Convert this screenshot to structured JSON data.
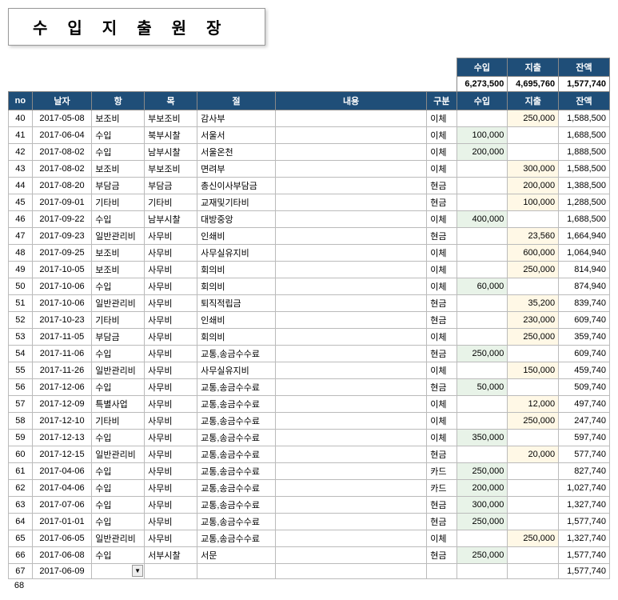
{
  "title": "수입지출원장",
  "summary": {
    "headers": {
      "in": "수입",
      "out": "지출",
      "bal": "잔액"
    },
    "values": {
      "in": "6,273,500",
      "out": "4,695,760",
      "bal": "1,577,740"
    }
  },
  "columns": {
    "no": "no",
    "date": "날자",
    "hang": "항",
    "mok": "목",
    "jeol": "절",
    "content": "내용",
    "gubun": "구분",
    "in": "수입",
    "out": "지출",
    "bal": "잔액"
  },
  "rows": [
    {
      "no": "40",
      "date": "2017-05-08",
      "hang": "보조비",
      "mok": "부보조비",
      "jeol": "감사부",
      "content": "",
      "gubun": "이체",
      "in": "",
      "out": "250,000",
      "bal": "1,588,500"
    },
    {
      "no": "41",
      "date": "2017-06-04",
      "hang": "수입",
      "mok": "북부시찰",
      "jeol": "서울서",
      "content": "",
      "gubun": "이체",
      "in": "100,000",
      "out": "",
      "bal": "1,688,500"
    },
    {
      "no": "42",
      "date": "2017-08-02",
      "hang": "수입",
      "mok": "남부시찰",
      "jeol": "서울온천",
      "content": "",
      "gubun": "이체",
      "in": "200,000",
      "out": "",
      "bal": "1,888,500"
    },
    {
      "no": "43",
      "date": "2017-08-02",
      "hang": "보조비",
      "mok": "부보조비",
      "jeol": "면려부",
      "content": "",
      "gubun": "이체",
      "in": "",
      "out": "300,000",
      "bal": "1,588,500"
    },
    {
      "no": "44",
      "date": "2017-08-20",
      "hang": "부담금",
      "mok": "부담금",
      "jeol": "총신이사부담금",
      "content": "",
      "gubun": "현금",
      "in": "",
      "out": "200,000",
      "bal": "1,388,500"
    },
    {
      "no": "45",
      "date": "2017-09-01",
      "hang": "기타비",
      "mok": "기타비",
      "jeol": "교재및기타비",
      "content": "",
      "gubun": "현금",
      "in": "",
      "out": "100,000",
      "bal": "1,288,500"
    },
    {
      "no": "46",
      "date": "2017-09-22",
      "hang": "수입",
      "mok": "남부시찰",
      "jeol": "대방중앙",
      "content": "",
      "gubun": "이체",
      "in": "400,000",
      "out": "",
      "bal": "1,688,500"
    },
    {
      "no": "47",
      "date": "2017-09-23",
      "hang": "일반관리비",
      "mok": "사무비",
      "jeol": "인쇄비",
      "content": "",
      "gubun": "현금",
      "in": "",
      "out": "23,560",
      "bal": "1,664,940"
    },
    {
      "no": "48",
      "date": "2017-09-25",
      "hang": "보조비",
      "mok": "사무비",
      "jeol": "사무실유지비",
      "content": "",
      "gubun": "이체",
      "in": "",
      "out": "600,000",
      "bal": "1,064,940"
    },
    {
      "no": "49",
      "date": "2017-10-05",
      "hang": "보조비",
      "mok": "사무비",
      "jeol": "회의비",
      "content": "",
      "gubun": "이체",
      "in": "",
      "out": "250,000",
      "bal": "814,940"
    },
    {
      "no": "50",
      "date": "2017-10-06",
      "hang": "수입",
      "mok": "사무비",
      "jeol": "회의비",
      "content": "",
      "gubun": "이체",
      "in": "60,000",
      "out": "",
      "bal": "874,940"
    },
    {
      "no": "51",
      "date": "2017-10-06",
      "hang": "일반관리비",
      "mok": "사무비",
      "jeol": "퇴직적립금",
      "content": "",
      "gubun": "현금",
      "in": "",
      "out": "35,200",
      "bal": "839,740"
    },
    {
      "no": "52",
      "date": "2017-10-23",
      "hang": "기타비",
      "mok": "사무비",
      "jeol": "인쇄비",
      "content": "",
      "gubun": "현금",
      "in": "",
      "out": "230,000",
      "bal": "609,740"
    },
    {
      "no": "53",
      "date": "2017-11-05",
      "hang": "부담금",
      "mok": "사무비",
      "jeol": "회의비",
      "content": "",
      "gubun": "이체",
      "in": "",
      "out": "250,000",
      "bal": "359,740"
    },
    {
      "no": "54",
      "date": "2017-11-06",
      "hang": "수입",
      "mok": "사무비",
      "jeol": "교통,송금수수료",
      "content": "",
      "gubun": "현금",
      "in": "250,000",
      "out": "",
      "bal": "609,740"
    },
    {
      "no": "55",
      "date": "2017-11-26",
      "hang": "일반관리비",
      "mok": "사무비",
      "jeol": "사무실유지비",
      "content": "",
      "gubun": "이체",
      "in": "",
      "out": "150,000",
      "bal": "459,740"
    },
    {
      "no": "56",
      "date": "2017-12-06",
      "hang": "수입",
      "mok": "사무비",
      "jeol": "교통,송금수수료",
      "content": "",
      "gubun": "현금",
      "in": "50,000",
      "out": "",
      "bal": "509,740"
    },
    {
      "no": "57",
      "date": "2017-12-09",
      "hang": "특별사업",
      "mok": "사무비",
      "jeol": "교통,송금수수료",
      "content": "",
      "gubun": "이체",
      "in": "",
      "out": "12,000",
      "bal": "497,740"
    },
    {
      "no": "58",
      "date": "2017-12-10",
      "hang": "기타비",
      "mok": "사무비",
      "jeol": "교통,송금수수료",
      "content": "",
      "gubun": "이체",
      "in": "",
      "out": "250,000",
      "bal": "247,740"
    },
    {
      "no": "59",
      "date": "2017-12-13",
      "hang": "수입",
      "mok": "사무비",
      "jeol": "교통,송금수수료",
      "content": "",
      "gubun": "이체",
      "in": "350,000",
      "out": "",
      "bal": "597,740"
    },
    {
      "no": "60",
      "date": "2017-12-15",
      "hang": "일반관리비",
      "mok": "사무비",
      "jeol": "교통,송금수수료",
      "content": "",
      "gubun": "현금",
      "in": "",
      "out": "20,000",
      "bal": "577,740"
    },
    {
      "no": "61",
      "date": "2017-04-06",
      "hang": "수입",
      "mok": "사무비",
      "jeol": "교통,송금수수료",
      "content": "",
      "gubun": "카드",
      "in": "250,000",
      "out": "",
      "bal": "827,740"
    },
    {
      "no": "62",
      "date": "2017-04-06",
      "hang": "수입",
      "mok": "사무비",
      "jeol": "교통,송금수수료",
      "content": "",
      "gubun": "카드",
      "in": "200,000",
      "out": "",
      "bal": "1,027,740"
    },
    {
      "no": "63",
      "date": "2017-07-06",
      "hang": "수입",
      "mok": "사무비",
      "jeol": "교통,송금수수료",
      "content": "",
      "gubun": "현금",
      "in": "300,000",
      "out": "",
      "bal": "1,327,740"
    },
    {
      "no": "64",
      "date": "2017-01-01",
      "hang": "수입",
      "mok": "사무비",
      "jeol": "교통,송금수수료",
      "content": "",
      "gubun": "현금",
      "in": "250,000",
      "out": "",
      "bal": "1,577,740"
    },
    {
      "no": "65",
      "date": "2017-06-05",
      "hang": "일반관리비",
      "mok": "사무비",
      "jeol": "교통,송금수수료",
      "content": "",
      "gubun": "이체",
      "in": "",
      "out": "250,000",
      "bal": "1,327,740"
    },
    {
      "no": "66",
      "date": "2017-06-08",
      "hang": "수입",
      "mok": "서부시찰",
      "jeol": "서문",
      "content": "",
      "gubun": "현금",
      "in": "250,000",
      "out": "",
      "bal": "1,577,740"
    },
    {
      "no": "67",
      "date": "2017-06-09",
      "hang": "",
      "mok": "",
      "jeol": "",
      "content": "",
      "gubun": "",
      "in": "",
      "out": "",
      "bal": "1,577,740",
      "dropdown": true
    }
  ],
  "footer_no": "68"
}
